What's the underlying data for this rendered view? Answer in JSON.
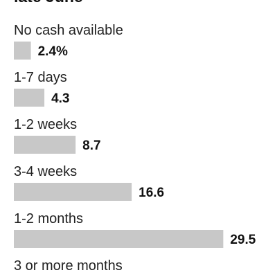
{
  "chart_data": {
    "type": "bar",
    "orientation": "horizontal",
    "title": "late June",
    "categories": [
      "No cash available",
      "1-7 days",
      "1-2 weeks",
      "3-4 weeks",
      "1-2 months",
      "3 or more months"
    ],
    "values": [
      2.4,
      4.3,
      8.7,
      16.6,
      29.5,
      null
    ],
    "value_labels": [
      "2.4%",
      "4.3",
      "8.7",
      "16.6",
      "29.5",
      null
    ],
    "color": "#c8c8c8"
  }
}
